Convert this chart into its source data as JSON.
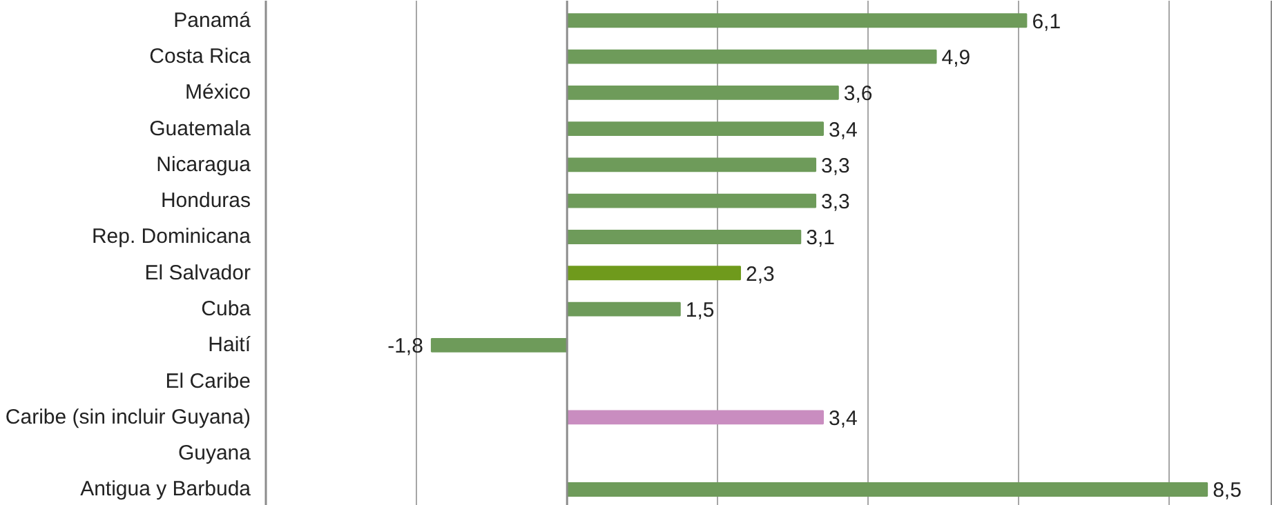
{
  "chart_data": {
    "type": "bar",
    "orientation": "horizontal",
    "categories": [
      "Panamá",
      "Costa Rica",
      "México",
      "Guatemala",
      "Nicaragua",
      "Honduras",
      "Rep. Dominicana",
      "El Salvador",
      "Cuba",
      "Haití",
      "El Caribe",
      "Caribe (sin incluir Guyana)",
      "Guyana",
      "Antigua y Barbuda"
    ],
    "values": [
      6.1,
      4.9,
      3.6,
      3.4,
      3.3,
      3.3,
      3.1,
      2.3,
      1.5,
      -1.8,
      null,
      3.4,
      null,
      8.5
    ],
    "value_labels": [
      "6,1",
      "4,9",
      "3,6",
      "3,4",
      "3,3",
      "3,3",
      "3,1",
      "2,3",
      "1,5",
      "-1,8",
      null,
      "3,4",
      null,
      "8,5"
    ],
    "colors": [
      "#6e9b5a",
      "#6e9b5a",
      "#6e9b5a",
      "#6e9b5a",
      "#6e9b5a",
      "#6e9b5a",
      "#6e9b5a",
      "#6f9a1c",
      "#6e9b5a",
      "#6e9b5a",
      "#93487a",
      "#c98dc0",
      "#6e9b5a",
      "#6e9b5a"
    ],
    "xlim": [
      -4,
      9.37
    ],
    "xticks": [
      {
        "value": -4,
        "label": null
      },
      {
        "value": -2,
        "label": null
      },
      {
        "value": 0,
        "label": null
      },
      {
        "value": 2,
        "label": null
      },
      {
        "value": 4,
        "label": null
      },
      {
        "value": 6,
        "label": null
      },
      {
        "value": 8,
        "label": null
      }
    ],
    "grid": "x",
    "tick_labels": "y"
  }
}
